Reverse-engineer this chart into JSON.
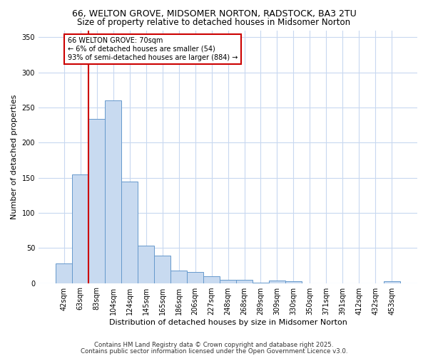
{
  "title1": "66, WELTON GROVE, MIDSOMER NORTON, RADSTOCK, BA3 2TU",
  "title2": "Size of property relative to detached houses in Midsomer Norton",
  "xlabel": "Distribution of detached houses by size in Midsomer Norton",
  "ylabel": "Number of detached properties",
  "bin_labels": [
    "42sqm",
    "63sqm",
    "83sqm",
    "104sqm",
    "124sqm",
    "145sqm",
    "165sqm",
    "186sqm",
    "206sqm",
    "227sqm",
    "248sqm",
    "268sqm",
    "289sqm",
    "309sqm",
    "330sqm",
    "350sqm",
    "371sqm",
    "391sqm",
    "412sqm",
    "432sqm",
    "453sqm"
  ],
  "bar_heights": [
    28,
    155,
    234,
    260,
    145,
    53,
    39,
    18,
    16,
    10,
    5,
    5,
    1,
    4,
    3,
    0,
    0,
    0,
    0,
    0,
    3
  ],
  "bar_color": "#c8daf0",
  "bar_edge_color": "#6699cc",
  "vline_color": "#cc0000",
  "annotation_text": "66 WELTON GROVE: 70sqm\n← 6% of detached houses are smaller (54)\n93% of semi-detached houses are larger (884) →",
  "annotation_box_color": "white",
  "annotation_box_edge_color": "#cc0000",
  "ylim": [
    0,
    360
  ],
  "yticks": [
    0,
    50,
    100,
    150,
    200,
    250,
    300,
    350
  ],
  "footer1": "Contains HM Land Registry data © Crown copyright and database right 2025.",
  "footer2": "Contains public sector information licensed under the Open Government Licence v3.0.",
  "bg_color": "#ffffff",
  "grid_color": "#c8d8f0",
  "title_fontsize": 9,
  "subtitle_fontsize": 8.5
}
